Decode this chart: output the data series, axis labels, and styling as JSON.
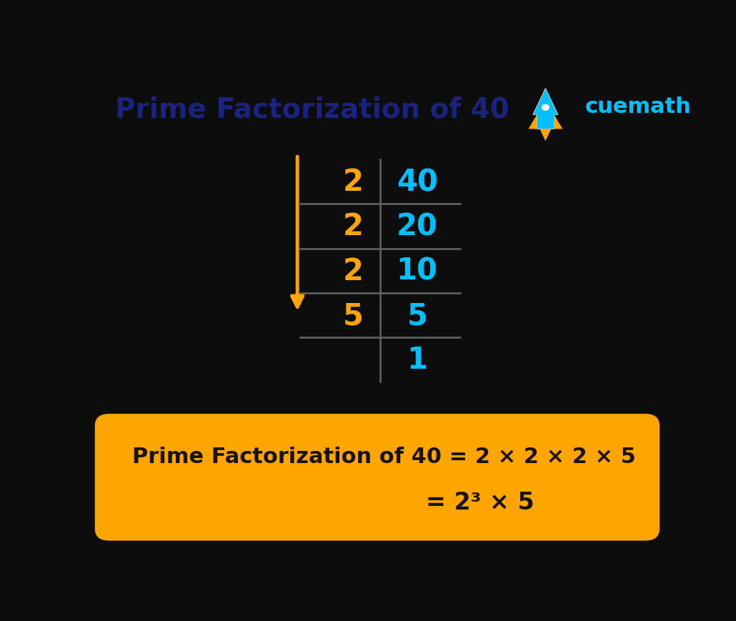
{
  "title": "Prime Factorization of 40",
  "title_color": "#1a237e",
  "background_color": "#0d0d0d",
  "orange_color": "#FFA500",
  "cyan_color": "#00BFFF",
  "white_color": "#FFFFFF",
  "arrow_color": "#FFA500",
  "box_color": "#FFA500",
  "box_text_color": "#1a1200",
  "divisors": [
    "2",
    "2",
    "2",
    "5"
  ],
  "dividends": [
    "40",
    "20",
    "10",
    "5",
    "1"
  ],
  "formula_line1": "Prime Factorization of 40 = 2 × 2 × 2 × 5",
  "formula_line2": "= 2³ × 5",
  "cuemath_text": "cuemath",
  "font_size_title": 28,
  "font_size_table": 30,
  "font_size_formula1": 22,
  "font_size_formula2": 24
}
